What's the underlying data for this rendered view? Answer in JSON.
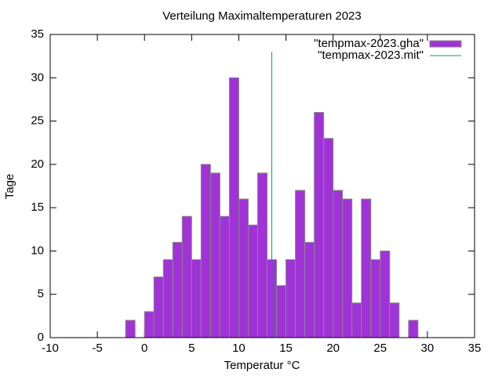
{
  "chart_data": {
    "type": "histogram",
    "title": "Verteilung Maximaltemperaturen 2023",
    "xlabel": "Temperatur °C",
    "ylabel": "Tage",
    "bins": [
      -2,
      -1,
      0,
      1,
      2,
      3,
      4,
      5,
      6,
      7,
      8,
      9,
      10,
      11,
      12,
      13,
      14,
      15,
      16,
      17,
      18,
      19,
      20,
      21,
      22,
      23,
      24,
      25,
      26,
      27,
      28,
      29
    ],
    "series": [
      {
        "name": "\"tempmax-2023.gha\"",
        "color": "#a032d8",
        "type": "histogram",
        "values": [
          2,
          0,
          3,
          7,
          9,
          11,
          14,
          9,
          20,
          19,
          14,
          30,
          16,
          13,
          19,
          9,
          6,
          9,
          17,
          11,
          26,
          23,
          17,
          16,
          4,
          16,
          9,
          10,
          4,
          0,
          2
        ]
      },
      {
        "name": "\"tempmax-2023.mit\"",
        "color": "#009e73",
        "type": "line",
        "x": [
          13.5,
          13.5
        ],
        "values": [
          0,
          33
        ]
      }
    ],
    "xlim": [
      -10,
      35
    ],
    "xticks": [
      -10,
      -5,
      0,
      5,
      10,
      15,
      20,
      25,
      30,
      35
    ],
    "ylim": [
      0,
      35
    ],
    "yticks": [
      0,
      5,
      10,
      15,
      20,
      25,
      30,
      35
    ],
    "legend": "top-right",
    "grid": false
  }
}
